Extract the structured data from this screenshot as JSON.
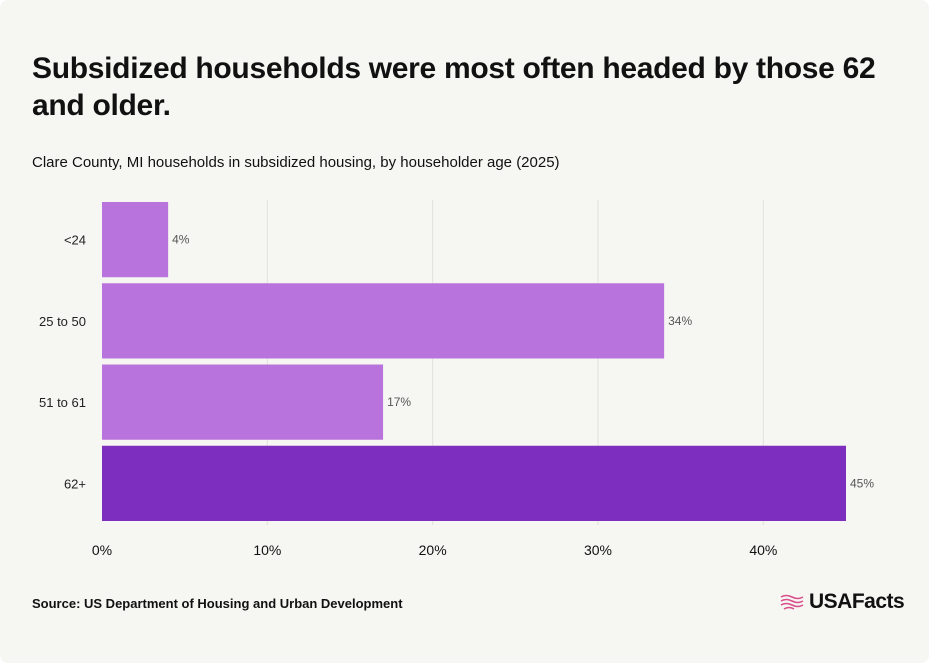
{
  "title": "Subsidized households were most often headed by those 62 and older.",
  "subtitle": "Clare County, MI households in subsidized housing, by householder age (2025)",
  "source": "Source: US Department of Housing and Urban Development",
  "brand": "USAFacts",
  "colors": {
    "bar": "#b874dc",
    "bar_highlight": "#7d2ebf",
    "grid": "#e2e2dc",
    "background": "#f6f6f2",
    "logo_accent": "#d94f8a"
  },
  "chart_data": {
    "type": "bar",
    "orientation": "horizontal",
    "categories": [
      "<24",
      "25 to 50",
      "51 to 61",
      "62+"
    ],
    "values": [
      4,
      34,
      17,
      45
    ],
    "value_labels": [
      "4%",
      "34%",
      "17%",
      "45%"
    ],
    "highlight": "62+",
    "xlim": [
      0,
      45
    ],
    "x_ticks": [
      0,
      10,
      20,
      30,
      40
    ],
    "x_tick_labels": [
      "0%",
      "10%",
      "20%",
      "30%",
      "40%"
    ],
    "grid": true,
    "xlabel": "",
    "ylabel": ""
  }
}
